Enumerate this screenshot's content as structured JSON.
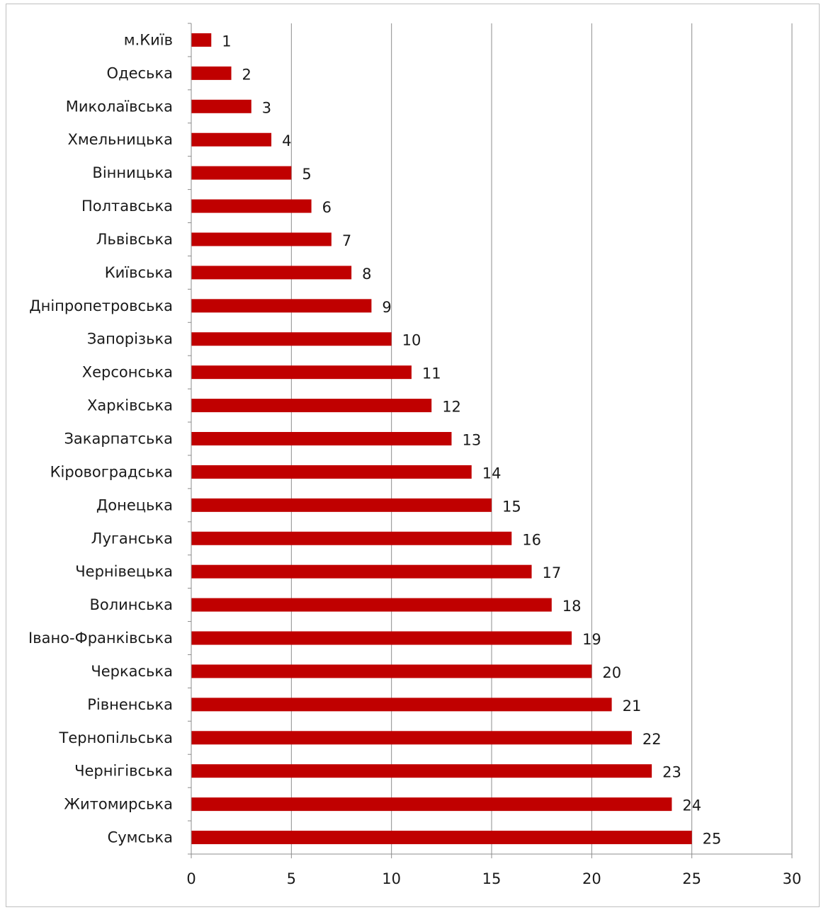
{
  "chart_data": {
    "type": "bar",
    "orientation": "horizontal",
    "title": "",
    "xlabel": "",
    "ylabel": "",
    "xlim": [
      0,
      30
    ],
    "x_ticks": [
      0,
      5,
      10,
      15,
      20,
      25,
      30
    ],
    "grid": "vertical",
    "legend": "none",
    "bar_color": "#c00000",
    "categories": [
      "м.Київ",
      "Одеська",
      "Миколаївська",
      "Хмельницька",
      "Вінницька",
      "Полтавська",
      "Львівська",
      "Київська",
      "Дніпропетровська",
      "Запорізька",
      "Херсонська",
      "Харківська",
      "Закарпатська",
      "Кіровоградська",
      "Донецька",
      "Луганська",
      "Чернівецька",
      "Волинська",
      "Івано-Франківська",
      "Черкаська",
      "Рівненська",
      "Тернопільська",
      "Чернігівська",
      "Житомирська",
      "Сумська"
    ],
    "values": [
      1,
      2,
      3,
      4,
      5,
      6,
      7,
      8,
      9,
      10,
      11,
      12,
      13,
      14,
      15,
      16,
      17,
      18,
      19,
      20,
      21,
      22,
      23,
      24,
      25
    ]
  }
}
